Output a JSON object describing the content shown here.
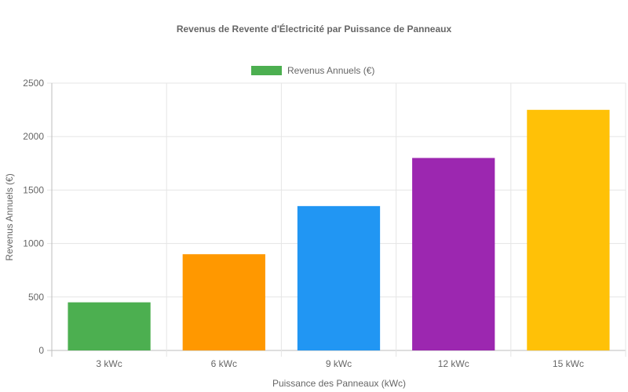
{
  "chart_data": {
    "type": "bar",
    "title": "Revenus de Revente d'Électricité par Puissance de Panneaux",
    "xlabel": "Puissance des Panneaux (kWc)",
    "ylabel": "Revenus Annuels (€)",
    "categories": [
      "3 kWc",
      "6 kWc",
      "9 kWc",
      "12 kWc",
      "15 kWc"
    ],
    "series": [
      {
        "name": "Revenus Annuels (€)",
        "values": [
          450,
          900,
          1350,
          1800,
          2250
        ],
        "colors": [
          "#4caf50",
          "#ff9800",
          "#2196f3",
          "#9c27b0",
          "#ffc107"
        ]
      }
    ],
    "ylim": [
      0,
      2500
    ],
    "yticks": [
      "0",
      "500",
      "1000",
      "1500",
      "2000",
      "2500"
    ],
    "legend_position": "top",
    "grid": true
  }
}
